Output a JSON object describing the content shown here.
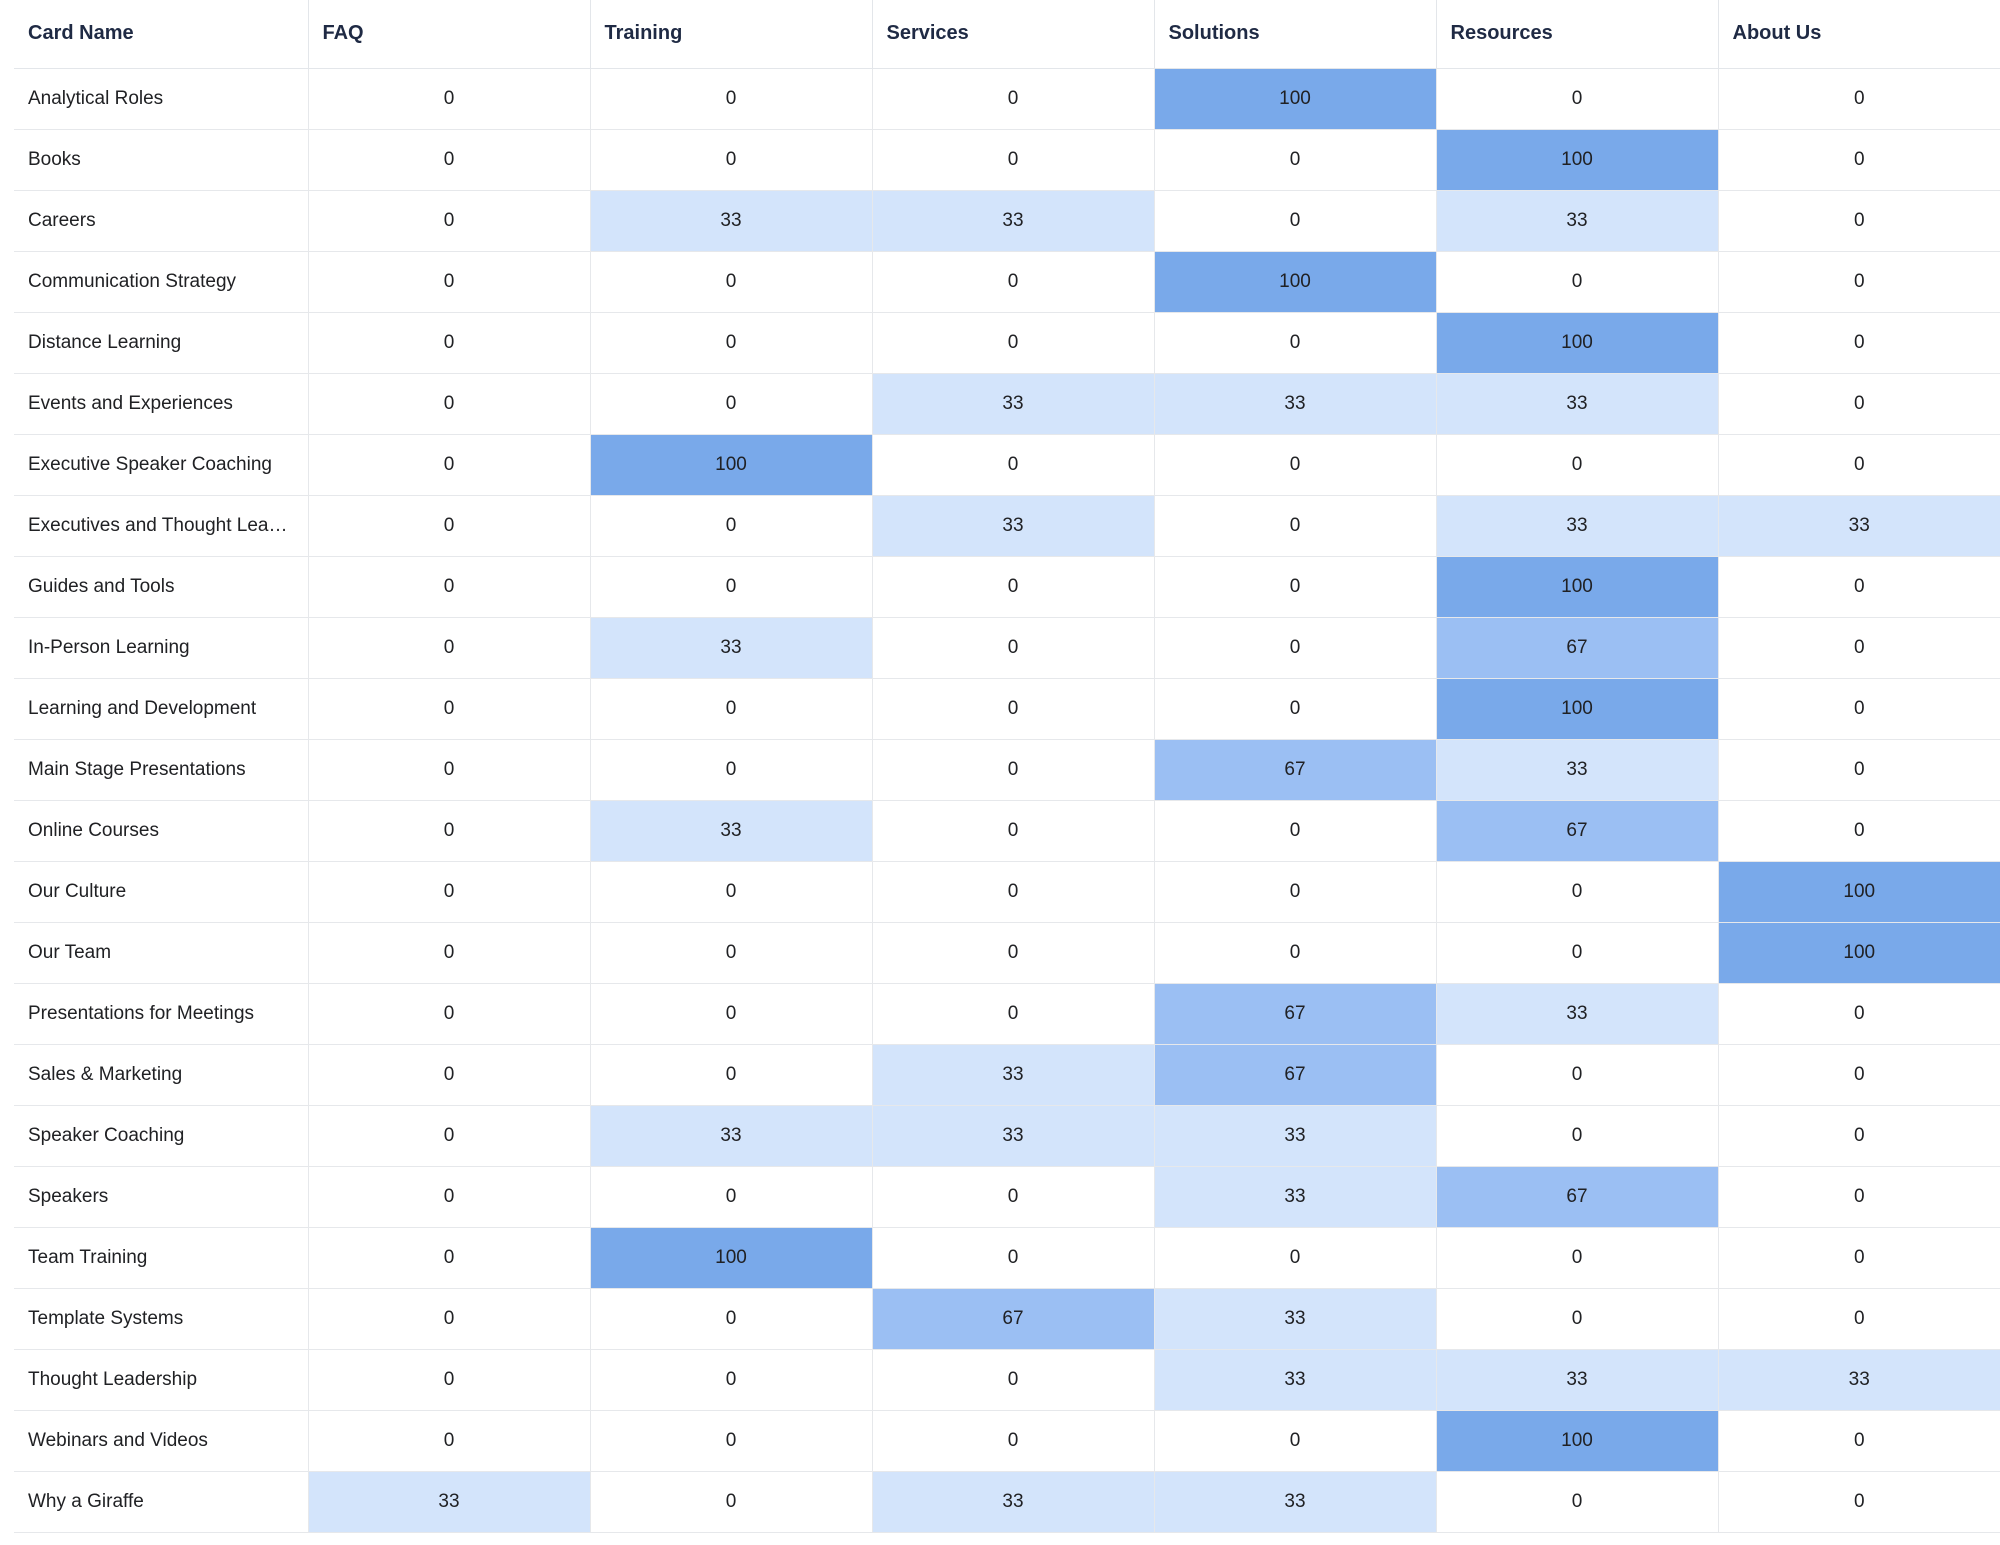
{
  "chart_data": {
    "type": "heatmap",
    "row_header": "Card Name",
    "columns": [
      "FAQ",
      "Training",
      "Services",
      "Solutions",
      "Resources",
      "About Us"
    ],
    "rows": [
      {
        "name": "Analytical Roles",
        "values": [
          0,
          0,
          0,
          100,
          0,
          0
        ]
      },
      {
        "name": "Books",
        "values": [
          0,
          0,
          0,
          0,
          100,
          0
        ]
      },
      {
        "name": "Careers",
        "values": [
          0,
          33,
          33,
          0,
          33,
          0
        ]
      },
      {
        "name": "Communication Strategy",
        "values": [
          0,
          0,
          0,
          100,
          0,
          0
        ]
      },
      {
        "name": "Distance Learning",
        "values": [
          0,
          0,
          0,
          0,
          100,
          0
        ]
      },
      {
        "name": "Events and Experiences",
        "values": [
          0,
          0,
          33,
          33,
          33,
          0
        ]
      },
      {
        "name": "Executive Speaker Coaching",
        "values": [
          0,
          100,
          0,
          0,
          0,
          0
        ]
      },
      {
        "name": "Executives and Thought Lea…",
        "values": [
          0,
          0,
          33,
          0,
          33,
          33
        ]
      },
      {
        "name": "Guides and Tools",
        "values": [
          0,
          0,
          0,
          0,
          100,
          0
        ]
      },
      {
        "name": "In-Person Learning",
        "values": [
          0,
          33,
          0,
          0,
          67,
          0
        ]
      },
      {
        "name": "Learning and Development",
        "values": [
          0,
          0,
          0,
          0,
          100,
          0
        ]
      },
      {
        "name": "Main Stage Presentations",
        "values": [
          0,
          0,
          0,
          67,
          33,
          0
        ]
      },
      {
        "name": "Online Courses",
        "values": [
          0,
          33,
          0,
          0,
          67,
          0
        ]
      },
      {
        "name": "Our Culture",
        "values": [
          0,
          0,
          0,
          0,
          0,
          100
        ]
      },
      {
        "name": "Our Team",
        "values": [
          0,
          0,
          0,
          0,
          0,
          100
        ]
      },
      {
        "name": "Presentations for Meetings",
        "values": [
          0,
          0,
          0,
          67,
          33,
          0
        ]
      },
      {
        "name": "Sales & Marketing",
        "values": [
          0,
          0,
          33,
          67,
          0,
          0
        ]
      },
      {
        "name": "Speaker Coaching",
        "values": [
          0,
          33,
          33,
          33,
          0,
          0
        ]
      },
      {
        "name": "Speakers",
        "values": [
          0,
          0,
          0,
          33,
          67,
          0
        ]
      },
      {
        "name": "Team Training",
        "values": [
          0,
          100,
          0,
          0,
          0,
          0
        ]
      },
      {
        "name": "Template Systems",
        "values": [
          0,
          0,
          67,
          33,
          0,
          0
        ]
      },
      {
        "name": "Thought Leadership",
        "values": [
          0,
          0,
          0,
          33,
          33,
          33
        ]
      },
      {
        "name": "Webinars and Videos",
        "values": [
          0,
          0,
          0,
          0,
          100,
          0
        ]
      },
      {
        "name": "Why a Giraffe",
        "values": [
          33,
          0,
          33,
          33,
          0,
          0
        ]
      }
    ],
    "color_scale": {
      "0": "#ffffff",
      "33": "#d3e4fb",
      "67": "#9bbff3",
      "100": "#79a9ea"
    }
  }
}
